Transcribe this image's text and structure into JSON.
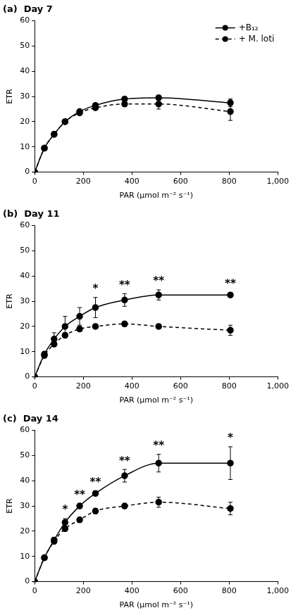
{
  "chart_data": [
    {
      "type": "line",
      "title": "(a)  Day 7",
      "x_label": "PAR (μmol m⁻² s⁻¹)",
      "y_label": "ETR",
      "x": [
        0,
        40,
        80,
        125,
        185,
        250,
        370,
        510,
        805
      ],
      "xlim": [
        0,
        1000
      ],
      "xticks": [
        0,
        200,
        400,
        600,
        800,
        1000
      ],
      "ylim": [
        0,
        60
      ],
      "yticks": [
        0,
        10,
        20,
        30,
        40,
        50,
        60
      ],
      "grid": false,
      "legend": "upper right",
      "series": [
        {
          "name": "+B₁₂",
          "color": "#000000",
          "line_style": "solid",
          "marker": "circle",
          "values": [
            0,
            9.5,
            15,
            20,
            24,
            26.5,
            29,
            29.5,
            27.5
          ],
          "errors": [
            0,
            0.5,
            0.5,
            0.5,
            0.8,
            0.8,
            0.8,
            1,
            1.5
          ]
        },
        {
          "name": "+ M. loti",
          "color": "#000000",
          "line_style": "dashed",
          "marker": "circle",
          "values": [
            0,
            9.5,
            15,
            20,
            23.5,
            25.5,
            27,
            27,
            24
          ],
          "errors": [
            0,
            0.5,
            0.5,
            0.5,
            0.8,
            0.8,
            1,
            2,
            3.5
          ]
        }
      ],
      "annotations": []
    },
    {
      "type": "line",
      "title": "(b)  Day 11",
      "x_label": "PAR (μmol m⁻² s⁻¹)",
      "y_label": "ETR",
      "x": [
        0,
        40,
        80,
        125,
        185,
        250,
        370,
        510,
        805
      ],
      "xlim": [
        0,
        1000
      ],
      "xticks": [
        0,
        200,
        400,
        600,
        800,
        1000
      ],
      "ylim": [
        0,
        60
      ],
      "yticks": [
        0,
        10,
        20,
        30,
        40,
        50,
        60
      ],
      "grid": false,
      "series": [
        {
          "name": "+B₁₂",
          "color": "#000000",
          "line_style": "solid",
          "marker": "circle",
          "values": [
            0,
            9,
            15,
            20,
            24,
            27.5,
            30.5,
            32.5,
            32.5
          ],
          "errors": [
            0,
            1,
            2.5,
            4,
            3.5,
            4,
            2.5,
            2,
            1
          ]
        },
        {
          "name": "+ M. loti",
          "color": "#000000",
          "line_style": "dashed",
          "marker": "circle",
          "values": [
            0,
            8.5,
            13,
            16.5,
            19,
            20,
            21,
            20,
            18.5
          ],
          "errors": [
            0,
            1,
            1,
            1,
            1,
            1,
            1,
            1,
            2
          ]
        }
      ],
      "annotations": [
        {
          "x": 250,
          "text": "*"
        },
        {
          "x": 370,
          "text": "**"
        },
        {
          "x": 510,
          "text": "**"
        },
        {
          "x": 805,
          "text": "**"
        }
      ]
    },
    {
      "type": "line",
      "title": "(c)  Day 14",
      "x_label": "PAR (μmol m⁻² s⁻¹)",
      "y_label": "ETR",
      "x": [
        0,
        40,
        80,
        125,
        185,
        250,
        370,
        510,
        805
      ],
      "xlim": [
        0,
        1000
      ],
      "xticks": [
        0,
        200,
        400,
        600,
        800,
        1000
      ],
      "ylim": [
        0,
        60
      ],
      "yticks": [
        0,
        10,
        20,
        30,
        40,
        50,
        60
      ],
      "grid": false,
      "series": [
        {
          "name": "+B₁₂",
          "color": "#000000",
          "line_style": "solid",
          "marker": "circle",
          "values": [
            0,
            9.5,
            16.5,
            23.5,
            30,
            35,
            42,
            47,
            47
          ],
          "errors": [
            0,
            0.5,
            1,
            1.5,
            1,
            1,
            2.5,
            3.5,
            6.5
          ]
        },
        {
          "name": "+ M. loti",
          "color": "#000000",
          "line_style": "dashed",
          "marker": "circle",
          "values": [
            0,
            9.5,
            16,
            21,
            24.5,
            28,
            30,
            31.5,
            29
          ],
          "errors": [
            0,
            0.5,
            1,
            1,
            1,
            1,
            1,
            2,
            2.5
          ]
        }
      ],
      "annotations": [
        {
          "x": 125,
          "text": "*"
        },
        {
          "x": 185,
          "text": "**"
        },
        {
          "x": 250,
          "text": "**"
        },
        {
          "x": 370,
          "text": "**"
        },
        {
          "x": 510,
          "text": "**"
        },
        {
          "x": 805,
          "text": "*"
        }
      ]
    }
  ]
}
